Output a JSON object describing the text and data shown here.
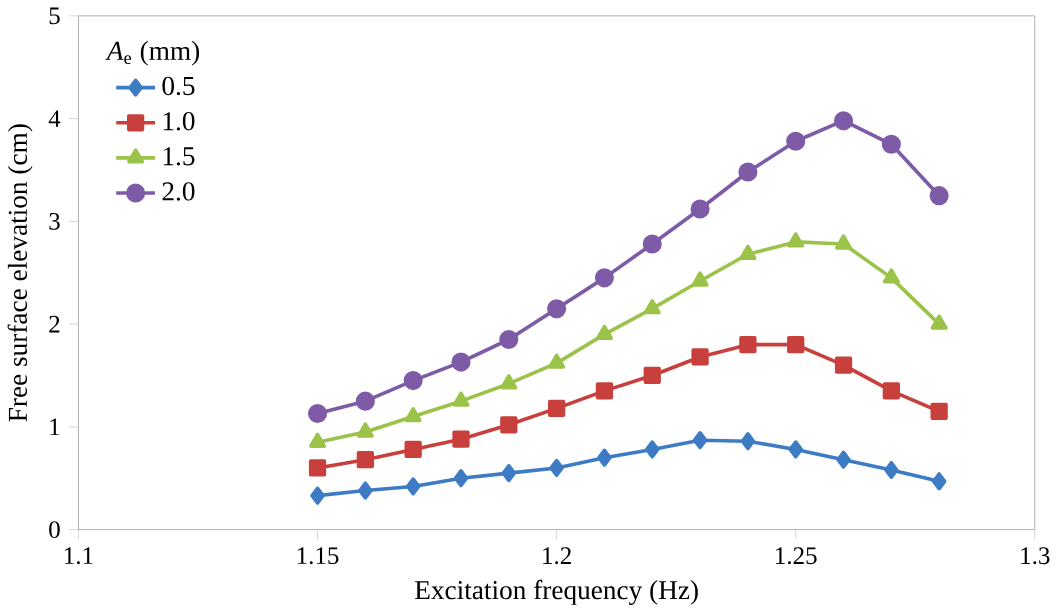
{
  "chart_data": {
    "type": "line",
    "xlabel": "Excitation frequency (Hz)",
    "ylabel": "Free surface elevation (cm)",
    "legend_title": "*A*$_{e}$ (mm)",
    "x": [
      1.15,
      1.16,
      1.17,
      1.18,
      1.19,
      1.2,
      1.21,
      1.22,
      1.23,
      1.24,
      1.25,
      1.26,
      1.27,
      1.28
    ],
    "series": [
      {
        "name": "0.5",
        "color": "#3d7cc4",
        "marker": "diamond",
        "values": [
          0.33,
          0.38,
          0.42,
          0.5,
          0.55,
          0.6,
          0.7,
          0.78,
          0.87,
          0.86,
          0.78,
          0.68,
          0.58,
          0.47
        ]
      },
      {
        "name": "1.0",
        "color": "#c8403c",
        "marker": "square",
        "values": [
          0.6,
          0.68,
          0.78,
          0.88,
          1.02,
          1.18,
          1.35,
          1.5,
          1.68,
          1.8,
          1.8,
          1.6,
          1.35,
          1.15
        ]
      },
      {
        "name": "1.5",
        "color": "#9bc34a",
        "marker": "triangle",
        "values": [
          0.85,
          0.95,
          1.1,
          1.25,
          1.42,
          1.62,
          1.9,
          2.15,
          2.42,
          2.68,
          2.8,
          2.78,
          2.45,
          2.0
        ]
      },
      {
        "name": "2.0",
        "color": "#7d5ba6",
        "marker": "circle",
        "values": [
          1.13,
          1.25,
          1.45,
          1.63,
          1.85,
          2.15,
          2.45,
          2.78,
          3.12,
          3.48,
          3.78,
          3.98,
          3.75,
          3.25
        ]
      }
    ],
    "xlim": [
      1.1,
      1.3
    ],
    "xticks": [
      1.1,
      1.15,
      1.2,
      1.25,
      1.3
    ],
    "ylim": [
      0,
      5
    ],
    "yticks": [
      0,
      1,
      2,
      3,
      4,
      5
    ],
    "grid": false,
    "legend": "top left",
    "line_style": "solid"
  }
}
